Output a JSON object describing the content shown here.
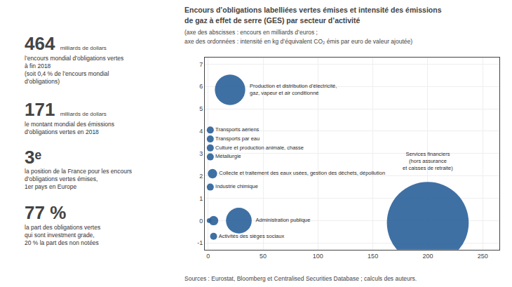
{
  "chart_data": {
    "type": "bubble",
    "title": [
      "Encours d’obligations labelliées vertes émises et intensité des émissions",
      "de gaz à effet de serre (GES) par secteur d’activité"
    ],
    "subtitle": [
      "(axe des abscisses : encours en milliards d’euros ;",
      "axe des ordonnées : intensité en kg d’équivalent CO₂ émis par euro de valeur ajoutée)"
    ],
    "source": "Sources : Eurostat, Bloomberg et Centralised Securities Database ; calculs des auteurs.",
    "stats": [
      {
        "big": "464",
        "unit": "milliards de dollars",
        "desc": "l’encours mondial d’obligations vertes\nà fin 2018\n(soit 0,4 % de l’encours mondial\nd’obligations)"
      },
      {
        "big": "171",
        "unit": "milliards de dollars",
        "desc": "le montant mondial des émissions\nd’obligations vertes en 2018"
      },
      {
        "big": "3ᵉ",
        "desc": "la position de la France pour les encours\nd’obligations vertes émises,\n1er pays en Europe"
      },
      {
        "big": "77 %",
        "desc": "la part des obligations vertes\nqui sont investment grade,\n20 % la part des non notées"
      }
    ],
    "labels": [
      "Production et distribution d’électricité,\ngaz, vapeur et air conditionné",
      "Transports aériens",
      "Transports par eau",
      "Culture et production animale, chasse",
      "Métallurgie",
      "Collecte et traitement des eaux usées, gestion des déchets, dépollution",
      "Industrie chimique",
      null,
      null,
      "Administration publique",
      "Activités des sièges sociaux",
      "Services financiers\n(hors assurance\net caisses de retraite)"
    ],
    "x": [
      20,
      2,
      2,
      2,
      2,
      4,
      2,
      1,
      5,
      28,
      5,
      200
    ],
    "values": [
      5.85,
      4.05,
      3.65,
      3.25,
      2.85,
      2.1,
      1.5,
      0.0,
      0.0,
      0.0,
      -0.7,
      -0.1
    ],
    "sizes": [
      13,
      3,
      3,
      3,
      3,
      4,
      3,
      2,
      4,
      11,
      3,
      35
    ],
    "color": "#2a6099",
    "xlim": [
      -3,
      265
    ],
    "ylim": [
      -1.3,
      7.3
    ],
    "xticks": [
      0,
      50,
      100,
      150,
      200,
      250
    ],
    "yticks": [
      -1,
      0,
      1,
      2,
      3,
      4,
      5,
      6,
      7
    ],
    "grid": true
  }
}
